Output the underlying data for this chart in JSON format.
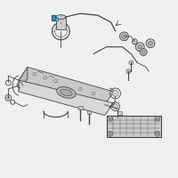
{
  "bg_color": "#f0f0f0",
  "line_color": "#444444",
  "highlight_color": "#2299cc",
  "fig_width": 2.0,
  "fig_height": 2.0,
  "dpi": 100,
  "tank_face_color": "#d8d8d8",
  "tank_top_color": "#c8c8c8",
  "tank_side_color": "#bbbbbb",
  "part_color": "#cccccc",
  "part_dark": "#aaaaaa"
}
